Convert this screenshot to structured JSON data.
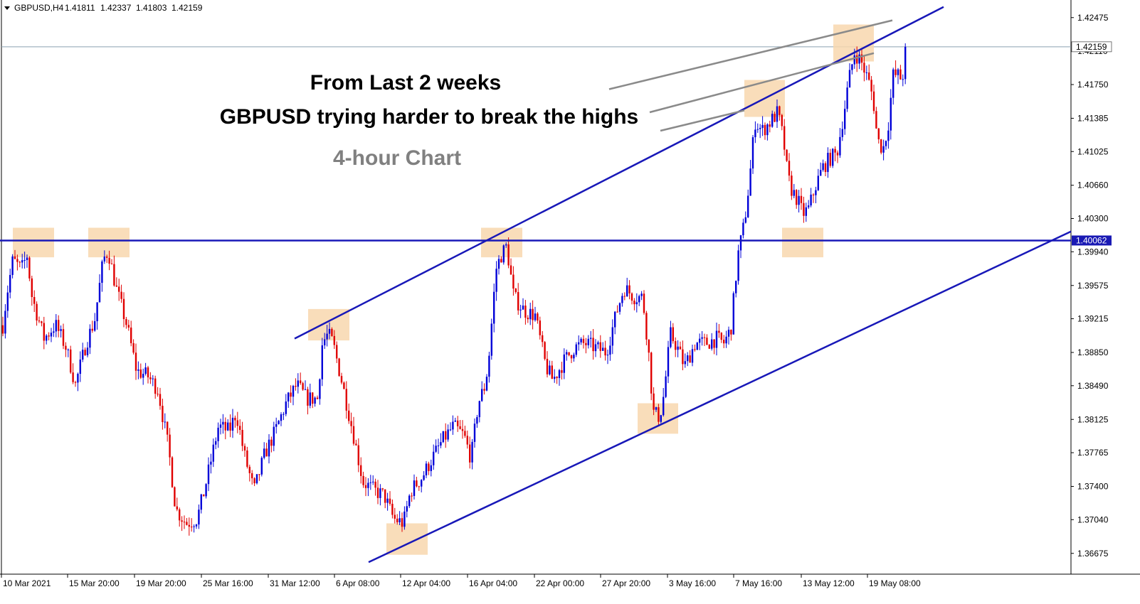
{
  "header": {
    "symbol": "GBPUSD,H4",
    "open": "1.41811",
    "high": "1.42337",
    "low": "1.41803",
    "close": "1.42159"
  },
  "annotations": {
    "line1": "From Last 2 weeks",
    "line2": "GBPUSD trying harder to break the highs",
    "timeframe": "4-hour Chart"
  },
  "colors": {
    "bull": "#0000d8",
    "bear": "#e00000",
    "trendline": "#1818b8",
    "highlight": "#f8d7ae",
    "pointer": "#8a8a8a",
    "axis": "#000000",
    "price_tag_bg": "#1a1ab4"
  },
  "chart_data": {
    "type": "candlestick",
    "symbol": "GBPUSD",
    "timeframe": "H4",
    "ylim": [
      1.3645,
      1.4265
    ],
    "y_ticks": [
      "1.42475",
      "1.42110",
      "1.41750",
      "1.41385",
      "1.41025",
      "1.40660",
      "1.40300",
      "1.39940",
      "1.39575",
      "1.39215",
      "1.38850",
      "1.38490",
      "1.38125",
      "1.37765",
      "1.37400",
      "1.37040",
      "1.36675"
    ],
    "x_ticks": [
      "10 Mar 2021",
      "15 Mar 20:00",
      "19 Mar 20:00",
      "25 Mar 16:00",
      "31 Mar 12:00",
      "6 Apr 08:00",
      "12 Apr 04:00",
      "16 Apr 04:00",
      "22 Apr 00:00",
      "27 Apr 20:00",
      "3 May 16:00",
      "7 May 16:00",
      "13 May 12:00",
      "19 May 08:00"
    ],
    "current_price": {
      "value": 1.42159,
      "label": "1.42159"
    },
    "support_level": {
      "value": 1.40062,
      "label": "1.40062"
    },
    "price_path": [
      [
        0,
        1.389
      ],
      [
        9,
        1.3945
      ],
      [
        18,
        1.3985
      ],
      [
        30,
        1.3975
      ],
      [
        38,
        1.399
      ],
      [
        45,
        1.3945
      ],
      [
        62,
        1.39
      ],
      [
        78,
        1.3915
      ],
      [
        93,
        1.389
      ],
      [
        106,
        1.385
      ],
      [
        121,
        1.3895
      ],
      [
        133,
        1.392
      ],
      [
        145,
        1.3985
      ],
      [
        152,
        1.3995
      ],
      [
        163,
        1.3955
      ],
      [
        178,
        1.3915
      ],
      [
        192,
        1.3865
      ],
      [
        207,
        1.386
      ],
      [
        222,
        1.3845
      ],
      [
        237,
        1.378
      ],
      [
        247,
        1.3715
      ],
      [
        262,
        1.37
      ],
      [
        277,
        1.3705
      ],
      [
        287,
        1.3735
      ],
      [
        297,
        1.377
      ],
      [
        307,
        1.3805
      ],
      [
        322,
        1.38
      ],
      [
        332,
        1.382
      ],
      [
        343,
        1.3775
      ],
      [
        357,
        1.3735
      ],
      [
        372,
        1.3775
      ],
      [
        387,
        1.38
      ],
      [
        402,
        1.383
      ],
      [
        417,
        1.385
      ],
      [
        431,
        1.3835
      ],
      [
        446,
        1.3835
      ],
      [
        453,
        1.3895
      ],
      [
        461,
        1.3905
      ],
      [
        468,
        1.3895
      ],
      [
        480,
        1.3855
      ],
      [
        497,
        1.3795
      ],
      [
        510,
        1.3745
      ],
      [
        527,
        1.3735
      ],
      [
        540,
        1.373
      ],
      [
        553,
        1.3705
      ],
      [
        567,
        1.37
      ],
      [
        577,
        1.3735
      ],
      [
        593,
        1.375
      ],
      [
        607,
        1.377
      ],
      [
        622,
        1.379
      ],
      [
        637,
        1.3805
      ],
      [
        652,
        1.3795
      ],
      [
        662,
        1.377
      ],
      [
        672,
        1.383
      ],
      [
        682,
        1.385
      ],
      [
        687,
        1.388
      ],
      [
        697,
        1.3975
      ],
      [
        704,
        1.399
      ],
      [
        712,
        1.4
      ],
      [
        722,
        1.3945
      ],
      [
        737,
        1.393
      ],
      [
        752,
        1.3925
      ],
      [
        767,
        1.387
      ],
      [
        777,
        1.3855
      ],
      [
        792,
        1.3875
      ],
      [
        807,
        1.389
      ],
      [
        822,
        1.3895
      ],
      [
        837,
        1.389
      ],
      [
        852,
        1.3885
      ],
      [
        867,
        1.393
      ],
      [
        877,
        1.3955
      ],
      [
        892,
        1.3945
      ],
      [
        903,
        1.3945
      ],
      [
        911,
        1.389
      ],
      [
        918,
        1.382
      ],
      [
        927,
        1.3815
      ],
      [
        933,
        1.384
      ],
      [
        942,
        1.3905
      ],
      [
        952,
        1.389
      ],
      [
        962,
        1.387
      ],
      [
        977,
        1.3895
      ],
      [
        992,
        1.3895
      ],
      [
        1007,
        1.39
      ],
      [
        1017,
        1.3895
      ],
      [
        1027,
        1.391
      ],
      [
        1037,
        1.399
      ],
      [
        1046,
        1.4025
      ],
      [
        1053,
        1.407
      ],
      [
        1061,
        1.4135
      ],
      [
        1071,
        1.4125
      ],
      [
        1083,
        1.4135
      ],
      [
        1093,
        1.4145
      ],
      [
        1101,
        1.4115
      ],
      [
        1107,
        1.4075
      ],
      [
        1113,
        1.406
      ],
      [
        1121,
        1.405
      ],
      [
        1128,
        1.4035
      ],
      [
        1136,
        1.404
      ],
      [
        1146,
        1.4065
      ],
      [
        1156,
        1.4085
      ],
      [
        1166,
        1.4095
      ],
      [
        1176,
        1.41
      ],
      [
        1186,
        1.4145
      ],
      [
        1193,
        1.418
      ],
      [
        1201,
        1.421
      ],
      [
        1210,
        1.42
      ],
      [
        1220,
        1.418
      ],
      [
        1227,
        1.416
      ],
      [
        1233,
        1.4115
      ],
      [
        1241,
        1.4105
      ],
      [
        1248,
        1.413
      ],
      [
        1255,
        1.4185
      ],
      [
        1262,
        1.4185
      ],
      [
        1268,
        1.418
      ],
      [
        1273,
        1.4216
      ]
    ],
    "lines": [
      {
        "name": "upper-channel",
        "from": [
          414,
          1.39
        ],
        "to": [
          1326,
          1.4259
        ]
      },
      {
        "name": "lower-channel",
        "from": [
          518,
          1.3658
        ],
        "to": [
          1505,
          1.4016
        ]
      },
      {
        "name": "horizontal-support",
        "from": [
          0,
          1.40062
        ],
        "to": [
          1505,
          1.40062
        ]
      }
    ],
    "highlight_boxes": [
      [
        18,
        1.402,
        76,
        1.3988
      ],
      [
        124,
        1.402,
        182,
        1.3988
      ],
      [
        433,
        1.3932,
        491,
        1.3898
      ],
      [
        676,
        1.402,
        734,
        1.3988
      ],
      [
        543,
        1.37,
        601,
        1.3666
      ],
      [
        896,
        1.383,
        953,
        1.3797
      ],
      [
        1046,
        1.418,
        1103,
        1.414
      ],
      [
        1099,
        1.402,
        1157,
        1.3988
      ],
      [
        1171,
        1.424,
        1228,
        1.42
      ]
    ],
    "pointer_lines": [
      [
        856,
        1.417,
        1254,
        1.42445
      ],
      [
        913,
        1.4145,
        1228,
        1.4209
      ],
      [
        928,
        1.4125,
        1046,
        1.4147
      ]
    ]
  }
}
